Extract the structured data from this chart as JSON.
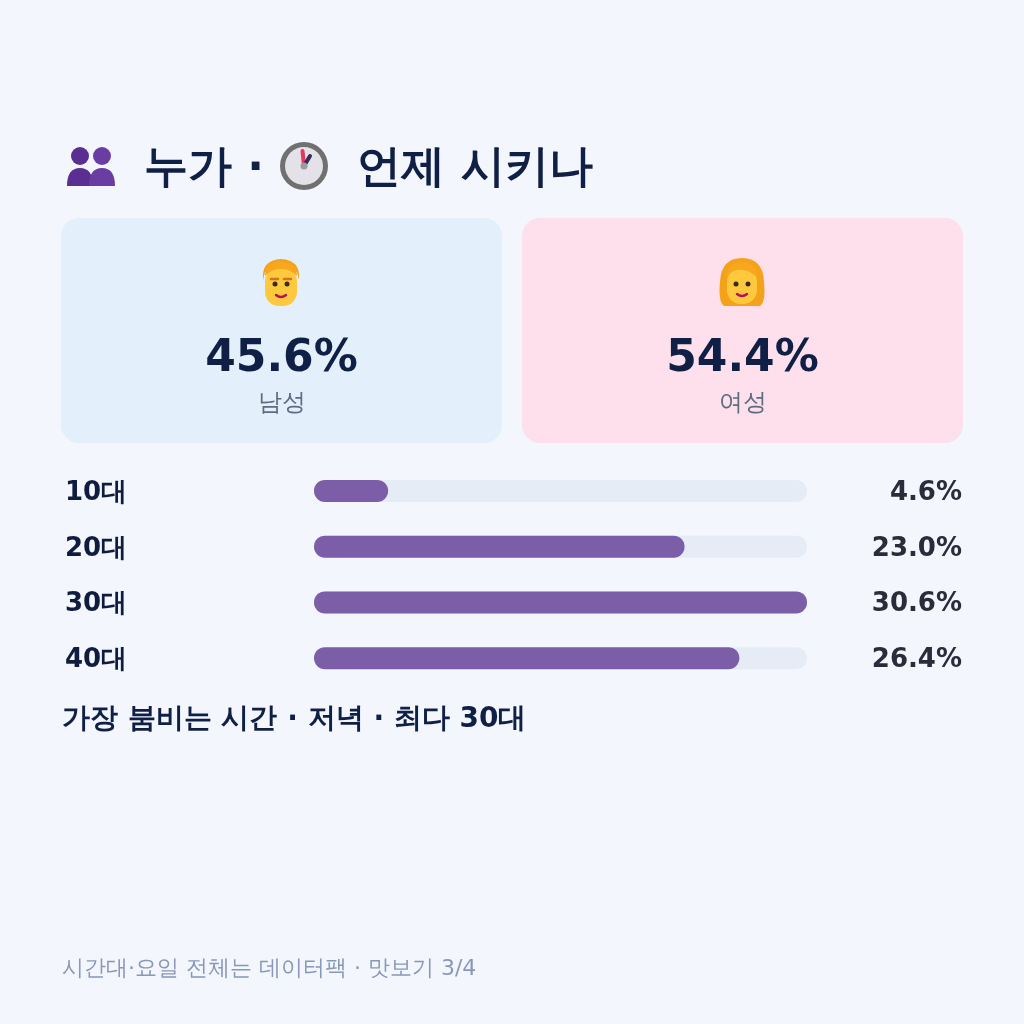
{
  "chart_data": [
    {
      "type": "other",
      "title": "누가 · 언제 시키나",
      "annotations": [
        "45.6%",
        "남성",
        "54.4%",
        "여성"
      ]
    },
    {
      "type": "bar",
      "orientation": "horizontal",
      "categories": [
        "10대",
        "20대",
        "30대",
        "40대"
      ],
      "values": [
        4.6,
        23.0,
        30.6,
        26.4
      ],
      "value_labels": [
        "4.6%",
        "23.0%",
        "30.6%",
        "26.4%"
      ],
      "color": "#7b5ea7",
      "annotations": [
        "가장 붐비는 시간 · 저녁 · 최다 30대",
        "시간대·요일 전체는 데이터팩 · 맛보기 3/4"
      ]
    }
  ]
}
